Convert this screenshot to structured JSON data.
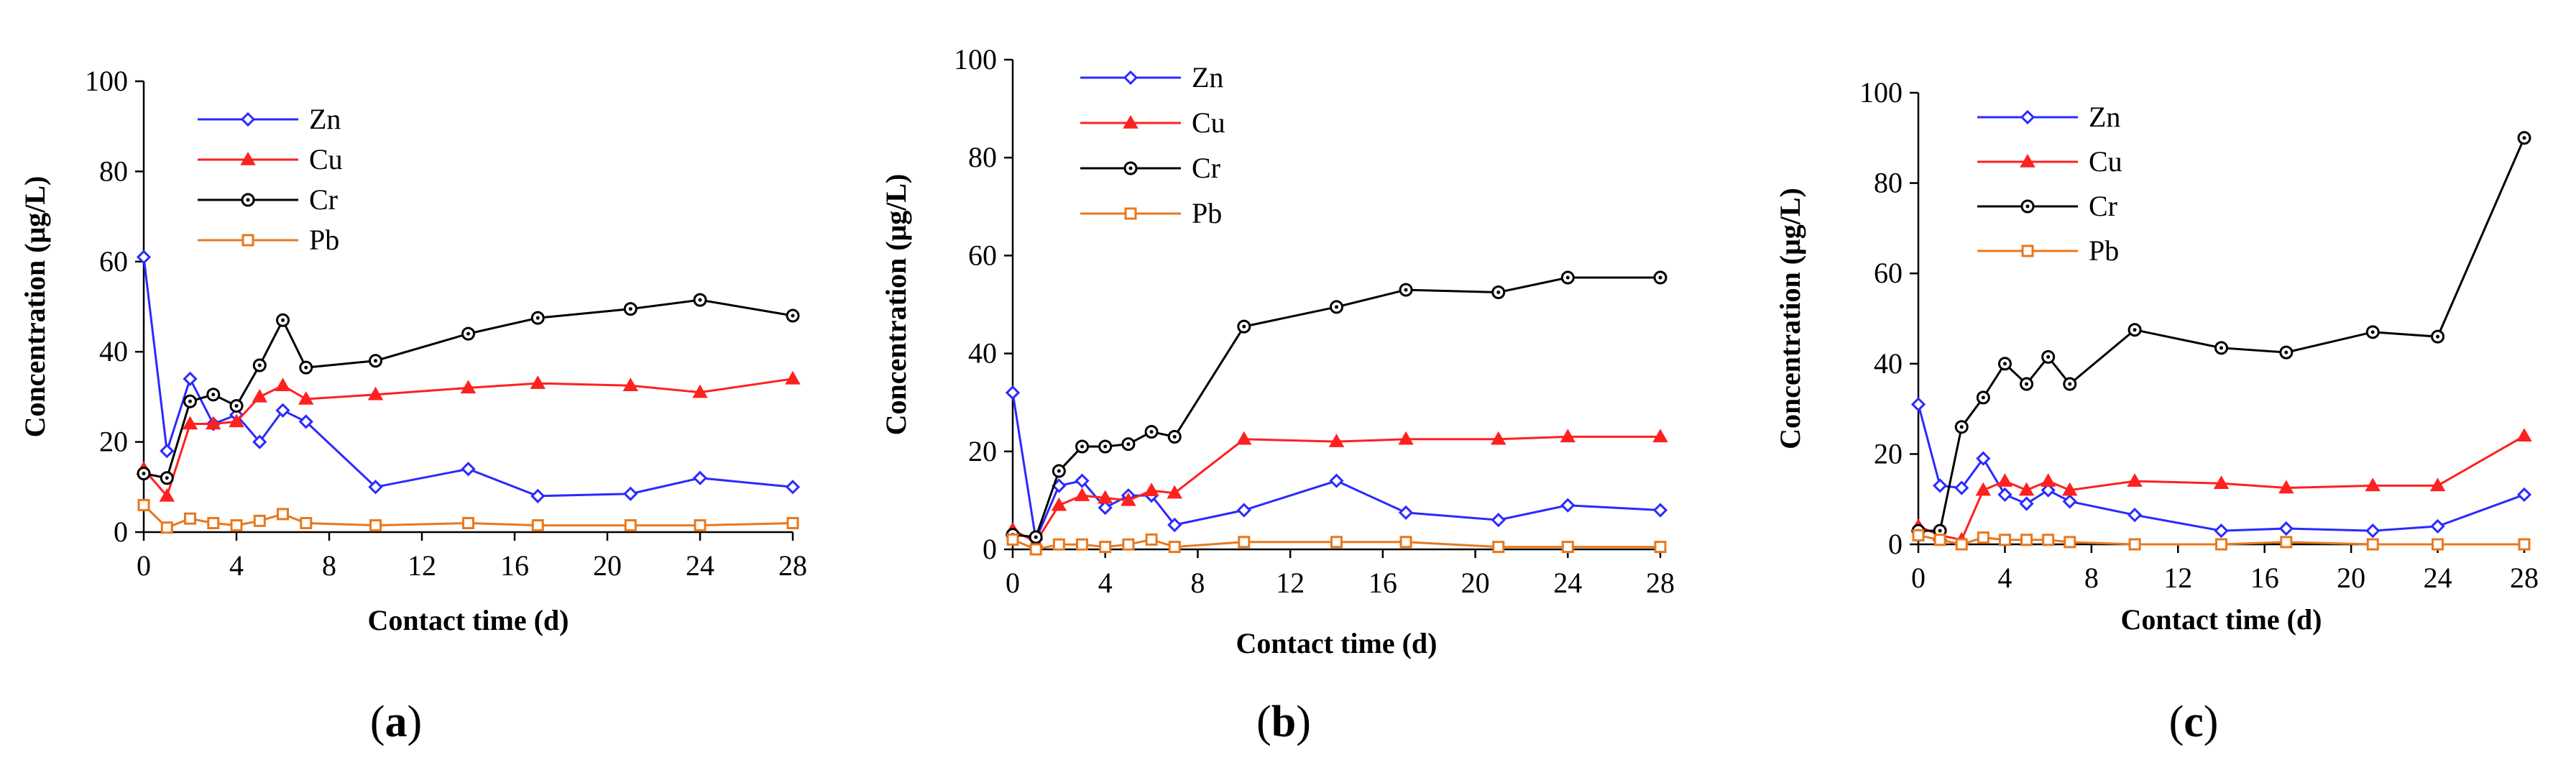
{
  "chart_data": [
    {
      "type": "line",
      "panel_label": "a",
      "xlabel": "Contact time (d)",
      "ylabel": "Concentration (μg/L)",
      "xlim": [
        0,
        28
      ],
      "ylim": [
        0,
        100
      ],
      "xticks": [
        0,
        4,
        8,
        12,
        16,
        20,
        24,
        28
      ],
      "yticks": [
        0,
        20,
        40,
        60,
        80,
        100
      ],
      "legend_position": "top-left",
      "series": [
        {
          "name": "Zn",
          "color": "#2a2aff",
          "marker": "diamond",
          "x": [
            0,
            1,
            2,
            3,
            4,
            5,
            6,
            7,
            10,
            14,
            17,
            21,
            24,
            28
          ],
          "y": [
            61,
            18,
            34,
            24,
            26,
            20,
            27,
            24.5,
            10,
            14,
            8,
            8.5,
            12,
            10
          ]
        },
        {
          "name": "Cu",
          "color": "#ff2020",
          "marker": "triangle",
          "x": [
            0,
            1,
            2,
            3,
            4,
            5,
            6,
            7,
            10,
            14,
            17,
            21,
            24,
            28
          ],
          "y": [
            14,
            8,
            24,
            24,
            24.5,
            30,
            32.5,
            29.5,
            30.5,
            32,
            33,
            32.5,
            31,
            34
          ]
        },
        {
          "name": "Cr",
          "color": "#000000",
          "marker": "circle",
          "x": [
            0,
            1,
            2,
            3,
            4,
            5,
            6,
            7,
            10,
            14,
            17,
            21,
            24,
            28
          ],
          "y": [
            13,
            12,
            29,
            30.5,
            28,
            37,
            47,
            36.5,
            38,
            44,
            47.5,
            49.5,
            51.5,
            48
          ]
        },
        {
          "name": "Pb",
          "color": "#e8781e",
          "marker": "square",
          "x": [
            0,
            1,
            2,
            3,
            4,
            5,
            6,
            7,
            10,
            14,
            17,
            21,
            24,
            28
          ],
          "y": [
            6,
            1,
            3,
            2,
            1.5,
            2.5,
            4,
            2,
            1.5,
            2,
            1.5,
            1.5,
            1.5,
            2
          ]
        }
      ]
    },
    {
      "type": "line",
      "panel_label": "b",
      "xlabel": "Contact time (d)",
      "ylabel": "Concentration (μg/L)",
      "xlim": [
        0,
        28
      ],
      "ylim": [
        0,
        100
      ],
      "xticks": [
        0,
        4,
        8,
        12,
        16,
        20,
        24,
        28
      ],
      "yticks": [
        0,
        20,
        40,
        60,
        80,
        100
      ],
      "legend_position": "top-left",
      "series": [
        {
          "name": "Zn",
          "color": "#2a2aff",
          "marker": "diamond",
          "x": [
            0,
            1,
            2,
            3,
            4,
            5,
            6,
            7,
            10,
            14,
            17,
            21,
            24,
            28
          ],
          "y": [
            32,
            2,
            13,
            14,
            8.5,
            11,
            11,
            5,
            8,
            14,
            7.5,
            6,
            9,
            8
          ]
        },
        {
          "name": "Cu",
          "color": "#ff2020",
          "marker": "triangle",
          "x": [
            0,
            1,
            2,
            3,
            4,
            5,
            6,
            7,
            10,
            14,
            17,
            21,
            24,
            28
          ],
          "y": [
            4,
            1.5,
            9,
            11,
            10.5,
            10,
            12,
            11.5,
            22.5,
            22,
            22.5,
            22.5,
            23,
            23
          ]
        },
        {
          "name": "Cr",
          "color": "#000000",
          "marker": "circle",
          "x": [
            0,
            1,
            2,
            3,
            4,
            5,
            6,
            7,
            10,
            14,
            17,
            21,
            24,
            28
          ],
          "y": [
            3,
            2.5,
            16,
            21,
            21,
            21.5,
            24,
            23,
            45.5,
            49.5,
            53,
            52.5,
            55.5,
            55.5
          ]
        },
        {
          "name": "Pb",
          "color": "#e8781e",
          "marker": "square",
          "x": [
            0,
            1,
            2,
            3,
            4,
            5,
            6,
            7,
            10,
            14,
            17,
            21,
            24,
            28
          ],
          "y": [
            2,
            0,
            1,
            1,
            0.5,
            1,
            2,
            0.5,
            1.5,
            1.5,
            1.5,
            0.5,
            0.5,
            0.5
          ]
        }
      ]
    },
    {
      "type": "line",
      "panel_label": "c",
      "xlabel": "Contact time (d)",
      "ylabel": "Concentration (μg/L)",
      "xlim": [
        0,
        28
      ],
      "ylim": [
        0,
        100
      ],
      "xticks": [
        0,
        4,
        8,
        12,
        16,
        20,
        24,
        28
      ],
      "yticks": [
        0,
        20,
        40,
        60,
        80,
        100
      ],
      "legend_position": "top-left",
      "series": [
        {
          "name": "Zn",
          "color": "#2a2aff",
          "marker": "diamond",
          "x": [
            0,
            1,
            2,
            3,
            4,
            5,
            6,
            7,
            10,
            14,
            17,
            21,
            24,
            28
          ],
          "y": [
            31,
            13,
            12.5,
            19,
            11,
            9,
            12,
            9.5,
            6.5,
            3,
            3.5,
            3,
            4,
            11
          ]
        },
        {
          "name": "Cu",
          "color": "#ff2020",
          "marker": "triangle",
          "x": [
            0,
            1,
            2,
            3,
            4,
            5,
            6,
            7,
            10,
            14,
            17,
            21,
            24,
            28
          ],
          "y": [
            4,
            2,
            1,
            12,
            14,
            12,
            14,
            12,
            14,
            13.5,
            12.5,
            13,
            13,
            24
          ]
        },
        {
          "name": "Cr",
          "color": "#000000",
          "marker": "circle",
          "x": [
            0,
            1,
            2,
            3,
            4,
            5,
            6,
            7,
            10,
            14,
            17,
            21,
            24,
            28
          ],
          "y": [
            3,
            3,
            26,
            32.5,
            40,
            35.5,
            41.5,
            35.5,
            47.5,
            43.5,
            42.5,
            47,
            46,
            90
          ]
        },
        {
          "name": "Pb",
          "color": "#e8781e",
          "marker": "square",
          "x": [
            0,
            1,
            2,
            3,
            4,
            5,
            6,
            7,
            10,
            14,
            17,
            21,
            24,
            28
          ],
          "y": [
            2,
            1,
            0,
            1.5,
            1,
            1,
            1,
            0.5,
            0,
            0,
            0.5,
            0,
            0,
            0
          ]
        }
      ]
    }
  ]
}
